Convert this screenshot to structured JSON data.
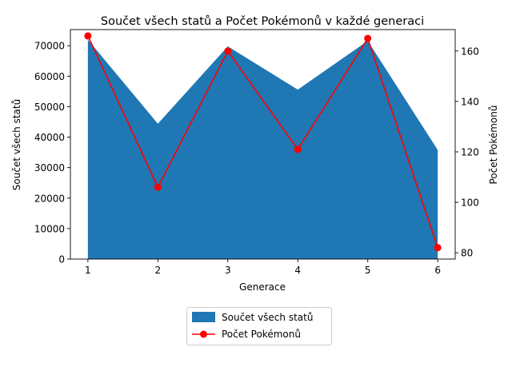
{
  "chart_data": {
    "type": "area",
    "title": "Součet všech statů a Počet Pokémonů v každé generaci",
    "xlabel": "Generace",
    "ylabel_left": "Součet všech statů",
    "ylabel_right": "Počet Pokémonů",
    "x": [
      1,
      2,
      3,
      4,
      5,
      6
    ],
    "xlim": [
      0.75,
      6.25
    ],
    "ylim_left": [
      0,
      75300
    ],
    "ylim_right": [
      77.5,
      168.5
    ],
    "yticks_left": [
      0,
      10000,
      20000,
      30000,
      40000,
      50000,
      60000,
      70000
    ],
    "yticks_right": [
      80,
      100,
      120,
      140,
      160
    ],
    "grid": false,
    "legend_position": "bottom-center, below plot",
    "series": [
      {
        "name": "Součet všech statů",
        "kind": "area",
        "axis": "left",
        "color": "#1f77b4",
        "values": [
          72000,
          44400,
          69800,
          55600,
          71600,
          35800
        ]
      },
      {
        "name": "Počet Pokémonů",
        "kind": "line",
        "axis": "right",
        "color": "#ff0000",
        "marker": "circle",
        "values": [
          166,
          106,
          160,
          121,
          165,
          82
        ]
      }
    ]
  }
}
